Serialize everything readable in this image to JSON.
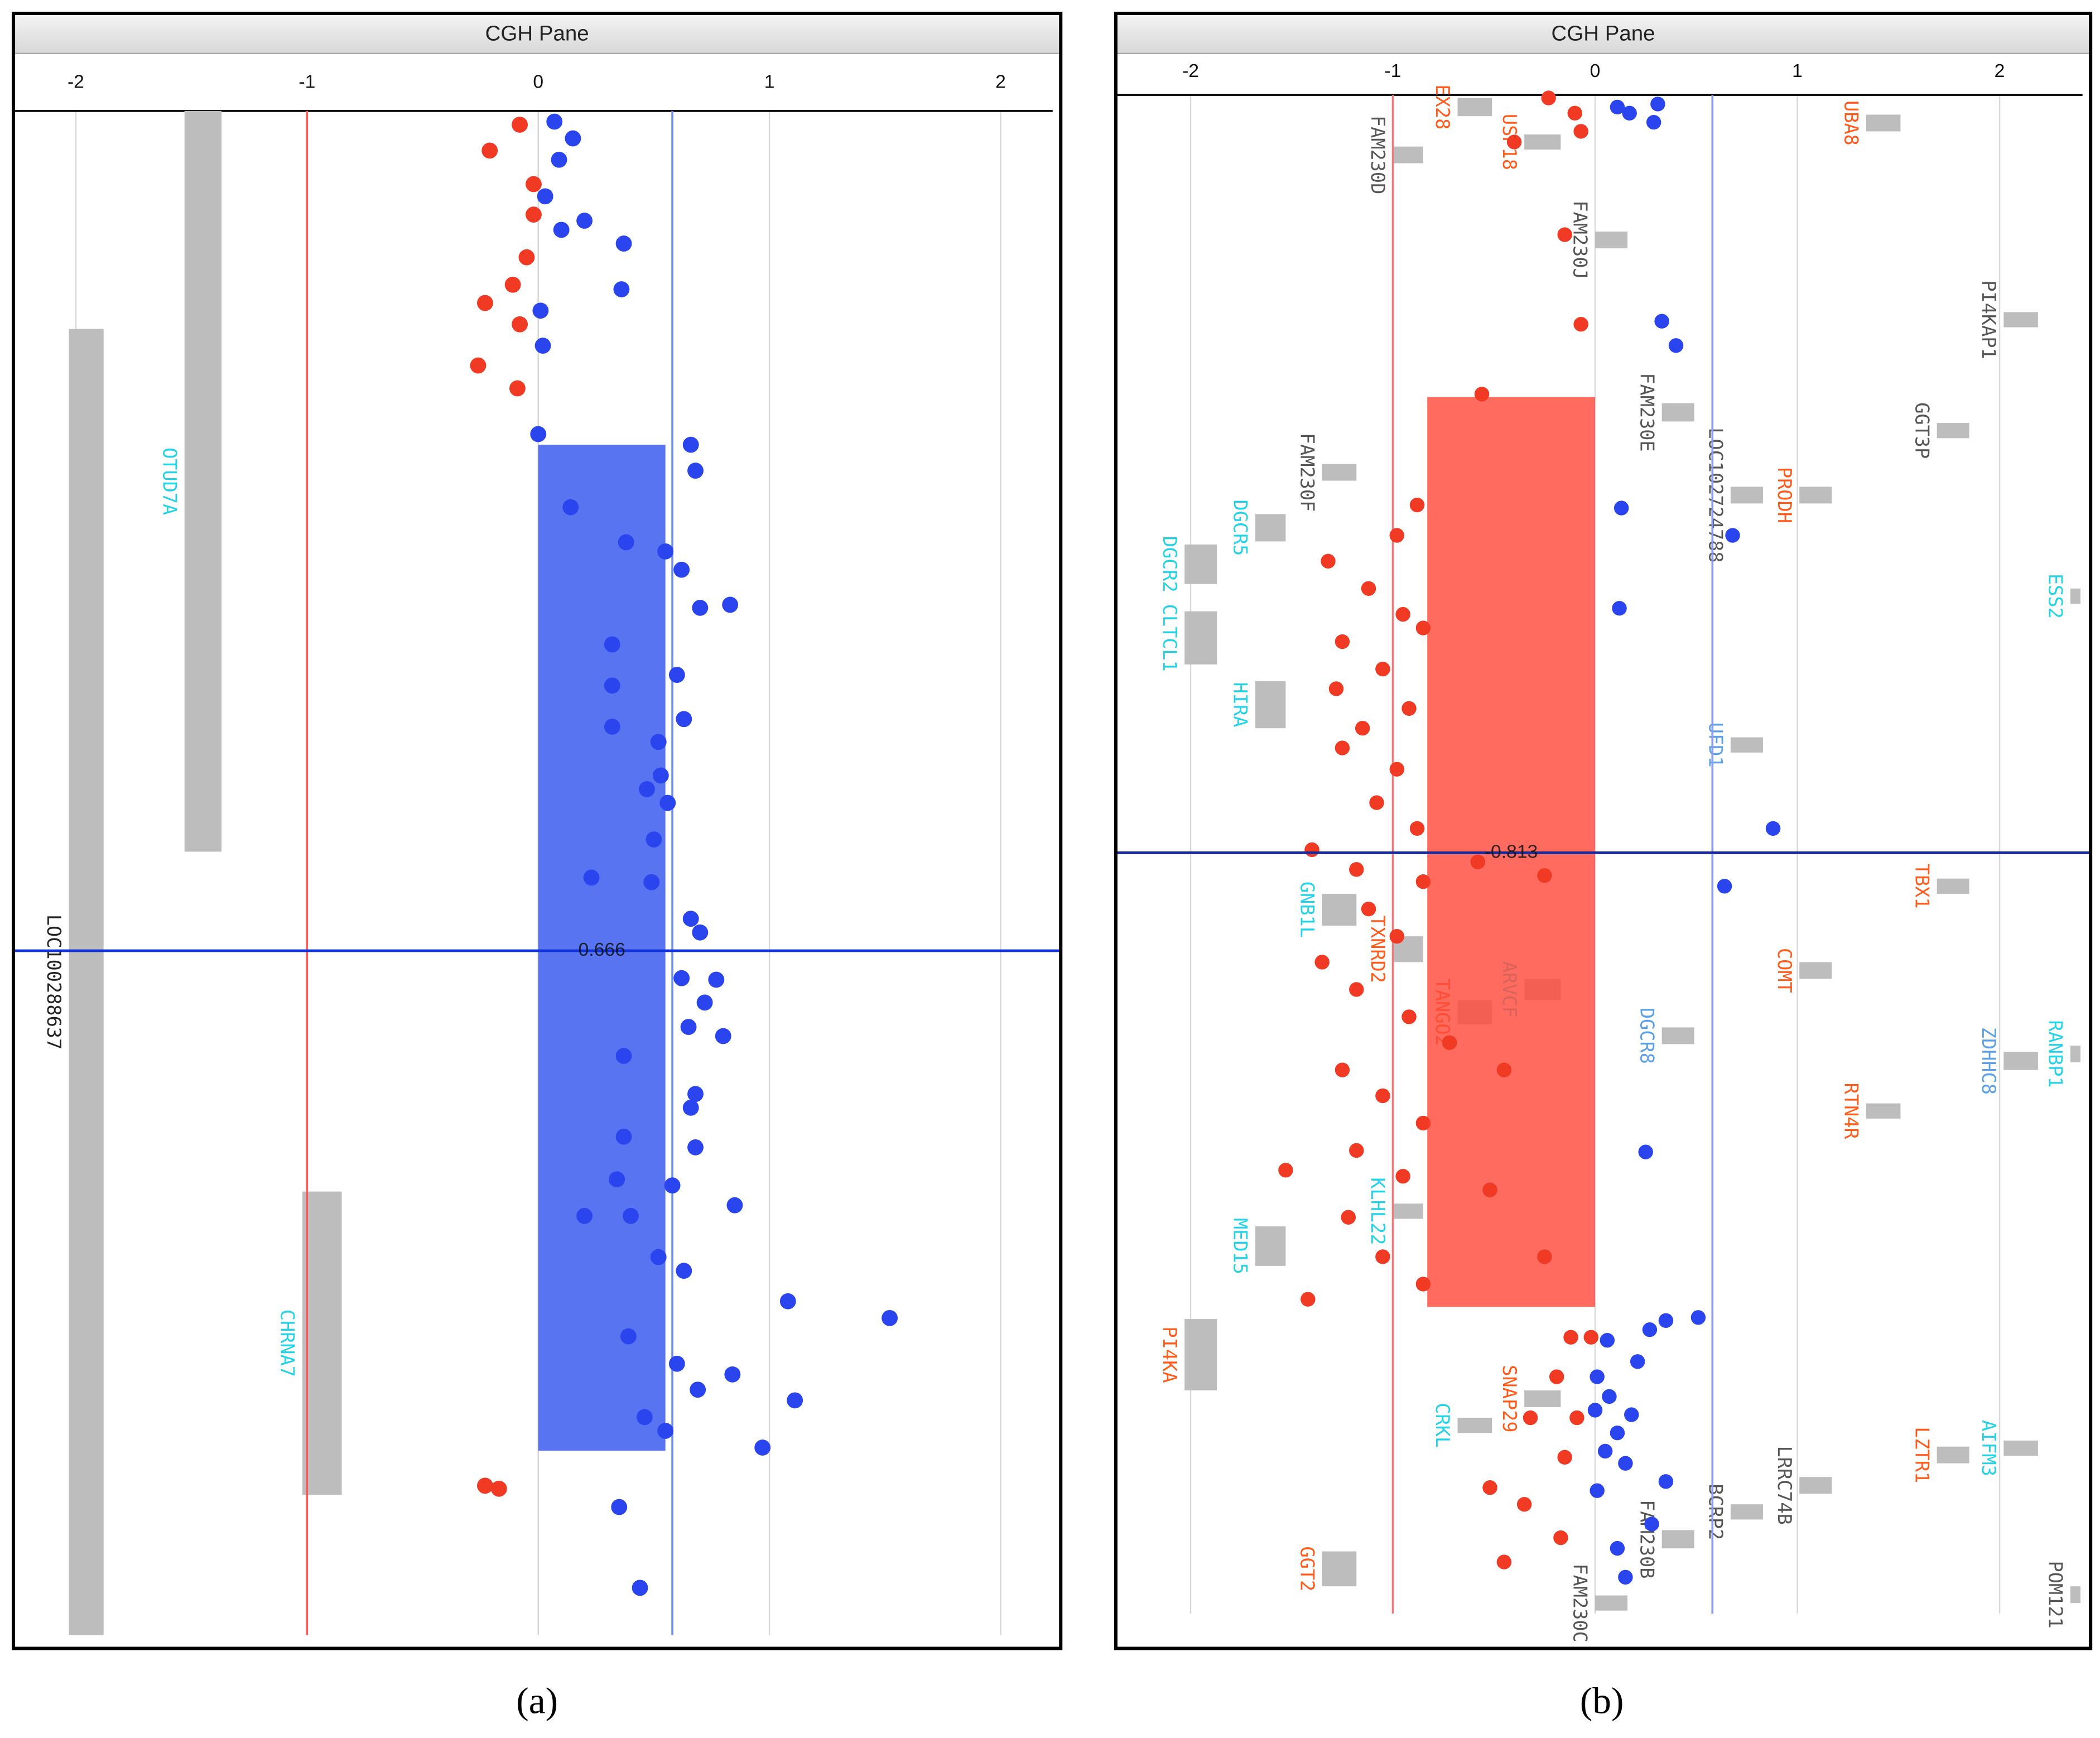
{
  "chart_data": [
    {
      "type": "scatter",
      "title": "CGH Pane",
      "panel_label": "(a)",
      "xlim": [
        -2.27,
        2.26
      ],
      "xticks": [
        -2,
        -1,
        0,
        1,
        2
      ],
      "ylim": [
        0,
        100
      ],
      "grid": true,
      "thresholds": [
        {
          "value": -1,
          "color": "#ff5a5a"
        },
        {
          "value": 0.58,
          "color": "#6a8cf0"
        }
      ],
      "cursor": {
        "y": 55.1,
        "color": "#1133dd"
      },
      "segment": {
        "value": 0.666,
        "x": [
          0,
          0.55
        ],
        "y": [
          21.9,
          87.9
        ],
        "color": "#3355ee"
      },
      "series": [
        {
          "color": "#f03a24",
          "x": [
            -0.08,
            -0.21,
            -0.02,
            -0.02,
            -0.05,
            -0.11,
            -0.23,
            -0.08,
            -0.26,
            -0.09,
            -0.23,
            -0.17
          ],
          "y": [
            0.9,
            2.6,
            4.8,
            6.8,
            9.6,
            11.4,
            12.6,
            14.0,
            16.7,
            18.2,
            90.2,
            90.4
          ]
        },
        {
          "color": "#2a44ee",
          "x": [
            0.07,
            0.15,
            0.09,
            0.03,
            0.2,
            0.1,
            0.37,
            0.36,
            0.01,
            0.02,
            0.0,
            0.66,
            0.68,
            0.14,
            0.38,
            0.55,
            0.62,
            0.83,
            0.7,
            0.32,
            0.6,
            0.32,
            0.63,
            0.32,
            0.52,
            0.53,
            0.47,
            0.56,
            0.5,
            0.23,
            0.49,
            0.66,
            0.7,
            0.62,
            0.77,
            0.72,
            0.65,
            0.8,
            0.37,
            0.68,
            0.66,
            0.37,
            0.68,
            0.34,
            0.58,
            0.85,
            0.2,
            0.4,
            0.63,
            0.52,
            0.39,
            0.6,
            0.84,
            0.69,
            0.46,
            0.55,
            1.08,
            1.52,
            1.11,
            0.97,
            0.35,
            0.44
          ],
          "y": [
            0.7,
            1.8,
            3.2,
            5.6,
            7.2,
            7.8,
            8.7,
            11.7,
            13.1,
            15.4,
            21.2,
            21.9,
            23.6,
            26.0,
            28.3,
            28.9,
            30.1,
            32.4,
            32.6,
            35.0,
            37.0,
            37.7,
            39.9,
            40.4,
            41.4,
            43.6,
            44.5,
            45.4,
            47.8,
            50.3,
            50.6,
            53.0,
            53.9,
            56.9,
            57.0,
            58.5,
            60.1,
            60.7,
            62.0,
            64.5,
            65.4,
            67.3,
            68.0,
            70.1,
            70.5,
            71.8,
            72.5,
            72.5,
            76.1,
            75.2,
            80.4,
            82.2,
            82.9,
            83.9,
            85.7,
            86.6,
            78.1,
            79.2,
            84.6,
            87.7,
            91.6,
            96.9
          ]
        }
      ],
      "genes": [
        {
          "name": "OTUD7A",
          "color": "#22d3e8",
          "x": [
            -1.53,
            -1.37
          ],
          "y": [
            0,
            48.6
          ]
        },
        {
          "name": "LOC100288637",
          "color": "#222222",
          "x": [
            -2.03,
            -1.88
          ],
          "y": [
            14.3,
            100
          ]
        },
        {
          "name": "CHRNA7",
          "color": "#22d3e8",
          "x": [
            -1.02,
            -0.85
          ],
          "y": [
            70.9,
            90.8
          ]
        }
      ]
    },
    {
      "type": "scatter",
      "title": "CGH Pane",
      "panel_label": "(b)",
      "xlim": [
        -2.37,
        2.45
      ],
      "xticks": [
        -2,
        -1,
        0,
        1,
        2
      ],
      "ylim": [
        0,
        100
      ],
      "grid": true,
      "thresholds": [
        {
          "value": -1,
          "color": "#f07a7a"
        },
        {
          "value": 0.58,
          "color": "#8a9cf0"
        }
      ],
      "cursor": {
        "y": 49.9,
        "color": "#1a2a99"
      },
      "segment": {
        "value": -0.813,
        "x": [
          -0.83,
          0
        ],
        "y": [
          19.9,
          79.8
        ],
        "color": "#ff4a3a"
      },
      "series": [
        {
          "color": "#f03a24",
          "x": [
            -0.23,
            -0.1,
            -0.07,
            -0.4,
            -0.15,
            -0.07,
            -0.56,
            -0.88,
            -0.98,
            -1.32,
            -1.12,
            -0.95,
            -1.25,
            -0.85,
            -1.05,
            -1.28,
            -0.92,
            -1.15,
            -1.25,
            -0.98,
            -1.08,
            -0.88,
            -1.4,
            -1.18,
            -0.85,
            -0.58,
            -0.25,
            -1.12,
            -0.98,
            -1.35,
            -1.18,
            -0.92,
            -0.72,
            -1.25,
            -1.05,
            -0.45,
            -0.85,
            -1.18,
            -0.95,
            -0.52,
            -1.53,
            -1.22,
            -1.05,
            -1.42,
            -0.85,
            -0.25,
            -0.12,
            -0.19,
            -0.32,
            -0.15,
            -0.52,
            -0.35,
            -0.17,
            -0.45,
            -0.02,
            -0.09
          ],
          "y": [
            0.2,
            1.2,
            2.4,
            3.1,
            9.2,
            15.1,
            19.7,
            27.0,
            29.0,
            30.7,
            32.5,
            34.2,
            36.0,
            35.1,
            37.8,
            39.1,
            40.4,
            41.7,
            43.0,
            44.4,
            46.6,
            48.3,
            49.7,
            51.0,
            51.8,
            50.5,
            51.4,
            53.6,
            55.4,
            57.1,
            58.9,
            60.7,
            62.4,
            64.2,
            65.9,
            64.2,
            67.7,
            69.5,
            71.2,
            72.1,
            70.8,
            73.9,
            76.5,
            79.3,
            78.3,
            76.5,
            81.8,
            84.4,
            87.1,
            89.7,
            91.7,
            92.8,
            95.0,
            96.6,
            81.8,
            87.1
          ]
        },
        {
          "color": "#2a44ee",
          "x": [
            0.11,
            0.17,
            0.31,
            0.29,
            0.33,
            0.4,
            0.13,
            0.68,
            0.12,
            0.88,
            0.64,
            0.25,
            0.51,
            0.35,
            0.27,
            0.06,
            0.21,
            0.01,
            0.07,
            0.0,
            0.18,
            0.11,
            0.05,
            0.15,
            0.01,
            0.35,
            0.28,
            0.11,
            0.15
          ],
          "y": [
            0.8,
            1.2,
            0.6,
            1.8,
            14.9,
            16.5,
            27.2,
            29.0,
            33.8,
            48.3,
            52.1,
            69.6,
            80.5,
            80.7,
            81.3,
            82.0,
            83.4,
            84.4,
            85.7,
            86.6,
            86.9,
            88.1,
            89.3,
            90.1,
            91.9,
            91.3,
            94.1,
            95.7,
            97.6
          ]
        }
      ],
      "genes": [
        {
          "name": "EX28",
          "color": "#ff5a1a",
          "x": [
            -0.68,
            -0.51
          ],
          "y": [
            0.2,
            1.4
          ]
        },
        {
          "name": "FAM230D",
          "color": "#555555",
          "x": [
            -1.0,
            -0.85
          ],
          "y": [
            3.4,
            4.5
          ]
        },
        {
          "name": "USP18",
          "color": "#ff5a1a",
          "x": [
            -0.35,
            -0.17
          ],
          "y": [
            2.6,
            3.6
          ]
        },
        {
          "name": "UBA8",
          "color": "#ff5a1a",
          "x": [
            1.34,
            1.51
          ],
          "y": [
            1.3,
            2.4
          ]
        },
        {
          "name": "FAM230J",
          "color": "#555555",
          "x": [
            0,
            0.16
          ],
          "y": [
            9.0,
            10.1
          ]
        },
        {
          "name": "PI4KAP1",
          "color": "#555555",
          "x": [
            2.02,
            2.19
          ],
          "y": [
            14.3,
            15.3
          ]
        },
        {
          "name": "FAM230E",
          "color": "#555555",
          "x": [
            0.33,
            0.49
          ],
          "y": [
            20.3,
            21.5
          ]
        },
        {
          "name": "GGT3P",
          "color": "#555555",
          "x": [
            1.69,
            1.85
          ],
          "y": [
            21.6,
            22.6
          ]
        },
        {
          "name": "FAM230F",
          "color": "#555555",
          "x": [
            -1.35,
            -1.18
          ],
          "y": [
            24.3,
            25.4
          ]
        },
        {
          "name": "LOC102724788",
          "color": "#555555",
          "x": [
            0.67,
            0.83
          ],
          "y": [
            25.8,
            26.9
          ]
        },
        {
          "name": "PRODH",
          "color": "#ff5a1a",
          "x": [
            1.01,
            1.17
          ],
          "y": [
            25.8,
            26.9
          ]
        },
        {
          "name": "DGCR5",
          "color": "#22d3e8",
          "x": [
            -1.68,
            -1.53
          ],
          "y": [
            27.6,
            29.4
          ]
        },
        {
          "name": "DGCR2",
          "color": "#22d3e8",
          "x": [
            -2.03,
            -1.87
          ],
          "y": [
            29.6,
            32.2
          ]
        },
        {
          "name": "CLTCL1",
          "color": "#22d3e8",
          "x": [
            -2.03,
            -1.87
          ],
          "y": [
            34.0,
            37.5
          ]
        },
        {
          "name": "ESS2",
          "color": "#22d3e8",
          "x": [
            2.35,
            2.4
          ],
          "y": [
            32.5,
            33.5
          ]
        },
        {
          "name": "HIRA",
          "color": "#22d3e8",
          "x": [
            -1.68,
            -1.53
          ],
          "y": [
            38.6,
            41.7
          ]
        },
        {
          "name": "UFD1",
          "color": "#5aa0e8",
          "x": [
            0.67,
            0.83
          ],
          "y": [
            42.3,
            43.3
          ]
        },
        {
          "name": "TBX1",
          "color": "#ff5a1a",
          "x": [
            1.69,
            1.85
          ],
          "y": [
            51.6,
            52.6
          ]
        },
        {
          "name": "GNB1L",
          "color": "#22d3e8",
          "x": [
            -1.35,
            -1.18
          ],
          "y": [
            52.6,
            54.7
          ]
        },
        {
          "name": "TXNRD2",
          "color": "#ff5a1a",
          "x": [
            -1.0,
            -0.85
          ],
          "y": [
            55.4,
            57.1
          ]
        },
        {
          "name": "ARVCF",
          "color": "#22d3e8",
          "x": [
            -0.35,
            -0.17
          ],
          "y": [
            58.2,
            59.6
          ]
        },
        {
          "name": "COMT",
          "color": "#ff5a1a",
          "x": [
            1.01,
            1.17
          ],
          "y": [
            57.1,
            58.2
          ]
        },
        {
          "name": "TANGO2",
          "color": "#ff5a1a",
          "x": [
            -0.68,
            -0.51
          ],
          "y": [
            59.6,
            61.2
          ]
        },
        {
          "name": "DGCR8",
          "color": "#5aa0e8",
          "x": [
            0.33,
            0.49
          ],
          "y": [
            61.4,
            62.5
          ]
        },
        {
          "name": "ZDHHC8",
          "color": "#5aa0e8",
          "x": [
            2.02,
            2.19
          ],
          "y": [
            63.0,
            64.2
          ]
        },
        {
          "name": "RANBP1",
          "color": "#22d3e8",
          "x": [
            2.35,
            2.4
          ],
          "y": [
            62.6,
            63.7
          ]
        },
        {
          "name": "RTN4R",
          "color": "#ff5a1a",
          "x": [
            1.34,
            1.51
          ],
          "y": [
            66.4,
            67.4
          ]
        },
        {
          "name": "KLHL22",
          "color": "#22d3e8",
          "x": [
            -1.0,
            -0.85
          ],
          "y": [
            73.0,
            74.0
          ]
        },
        {
          "name": "MED15",
          "color": "#22d3e8",
          "x": [
            -1.68,
            -1.53
          ],
          "y": [
            74.5,
            77.1
          ]
        },
        {
          "name": "PI4KA",
          "color": "#ff5a1a",
          "x": [
            -2.03,
            -1.87
          ],
          "y": [
            80.6,
            85.3
          ]
        },
        {
          "name": "SNAP29",
          "color": "#ff5a1a",
          "x": [
            -0.35,
            -0.17
          ],
          "y": [
            85.3,
            86.4
          ]
        },
        {
          "name": "CRKL",
          "color": "#22d3e8",
          "x": [
            -0.68,
            -0.51
          ],
          "y": [
            87.1,
            88.1
          ]
        },
        {
          "name": "AIFM3",
          "color": "#22d3e8",
          "x": [
            2.02,
            2.19
          ],
          "y": [
            88.6,
            89.6
          ]
        },
        {
          "name": "LZTR1",
          "color": "#ff5a1a",
          "x": [
            1.69,
            1.85
          ],
          "y": [
            89.0,
            90.1
          ]
        },
        {
          "name": "LRRC74B",
          "color": "#555555",
          "x": [
            1.01,
            1.17
          ],
          "y": [
            91.0,
            92.1
          ]
        },
        {
          "name": "BCRP2",
          "color": "#555555",
          "x": [
            0.67,
            0.83
          ],
          "y": [
            92.8,
            93.8
          ]
        },
        {
          "name": "FAM230B",
          "color": "#555555",
          "x": [
            0.33,
            0.49
          ],
          "y": [
            94.5,
            95.7
          ]
        },
        {
          "name": "GGT2",
          "color": "#ff5a1a",
          "x": [
            -1.35,
            -1.18
          ],
          "y": [
            95.9,
            98.2
          ]
        },
        {
          "name": "FAM230C",
          "color": "#555555",
          "x": [
            0,
            0.16
          ],
          "y": [
            98.8,
            99.8
          ]
        },
        {
          "name": "POM121",
          "color": "#555555",
          "x": [
            2.35,
            2.4
          ],
          "y": [
            98.2,
            99.3
          ]
        }
      ]
    }
  ]
}
